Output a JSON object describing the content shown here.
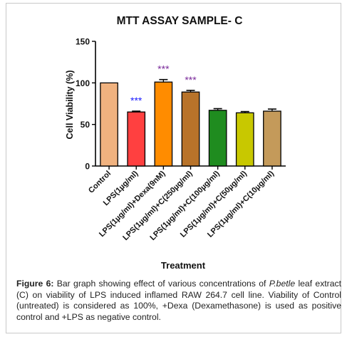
{
  "chart_data": {
    "type": "bar",
    "title": "MTT ASSAY SAMPLE- C",
    "xlabel": "Treatment",
    "ylabel": "Cell Viability (%)",
    "ylim": [
      0,
      150
    ],
    "yticks": [
      "0",
      "50",
      "100",
      "150"
    ],
    "categories": [
      "Control",
      "LPS(1µg/ml)",
      "LPS(1µg/ml)+Dexa(9nM)",
      "LPS(1µg/ml)+C(250µg/ml)",
      "LPS(1µg/ml)+C(100µg/ml)",
      "LPS(1µg/ml)+C(50µg/ml)",
      "LPS(1µg/ml)+C(10µg/ml)"
    ],
    "values": [
      100,
      65,
      101,
      89,
      67,
      64,
      66
    ],
    "errors": [
      0,
      1,
      3,
      2,
      2,
      1.5,
      2.5
    ],
    "colors": [
      "#f0b27f",
      "#ff4040",
      "#ff8c00",
      "#b8732a",
      "#1f8c1f",
      "#c8c800",
      "#c49a5a"
    ],
    "annotations": [
      {
        "category_index": 1,
        "text": "***",
        "color": "#1a1aff"
      },
      {
        "category_index": 2,
        "text": "***",
        "color": "#7a2a9a"
      },
      {
        "category_index": 3,
        "text": "***",
        "color": "#7a2a9a"
      }
    ],
    "grid": false
  },
  "caption": {
    "label": "Figure 6:",
    "text_before_italic": " Bar graph showing effect of various concentrations of ",
    "italic": "P.betle",
    "text_after_italic": " leaf extract (C) on viability of LPS induced inflamed RAW 264.7 cell line. Viability of Control (untreated) is considered as 100%, +Dexa (Dexamethasone) is used as positive control and +LPS as negative control."
  }
}
